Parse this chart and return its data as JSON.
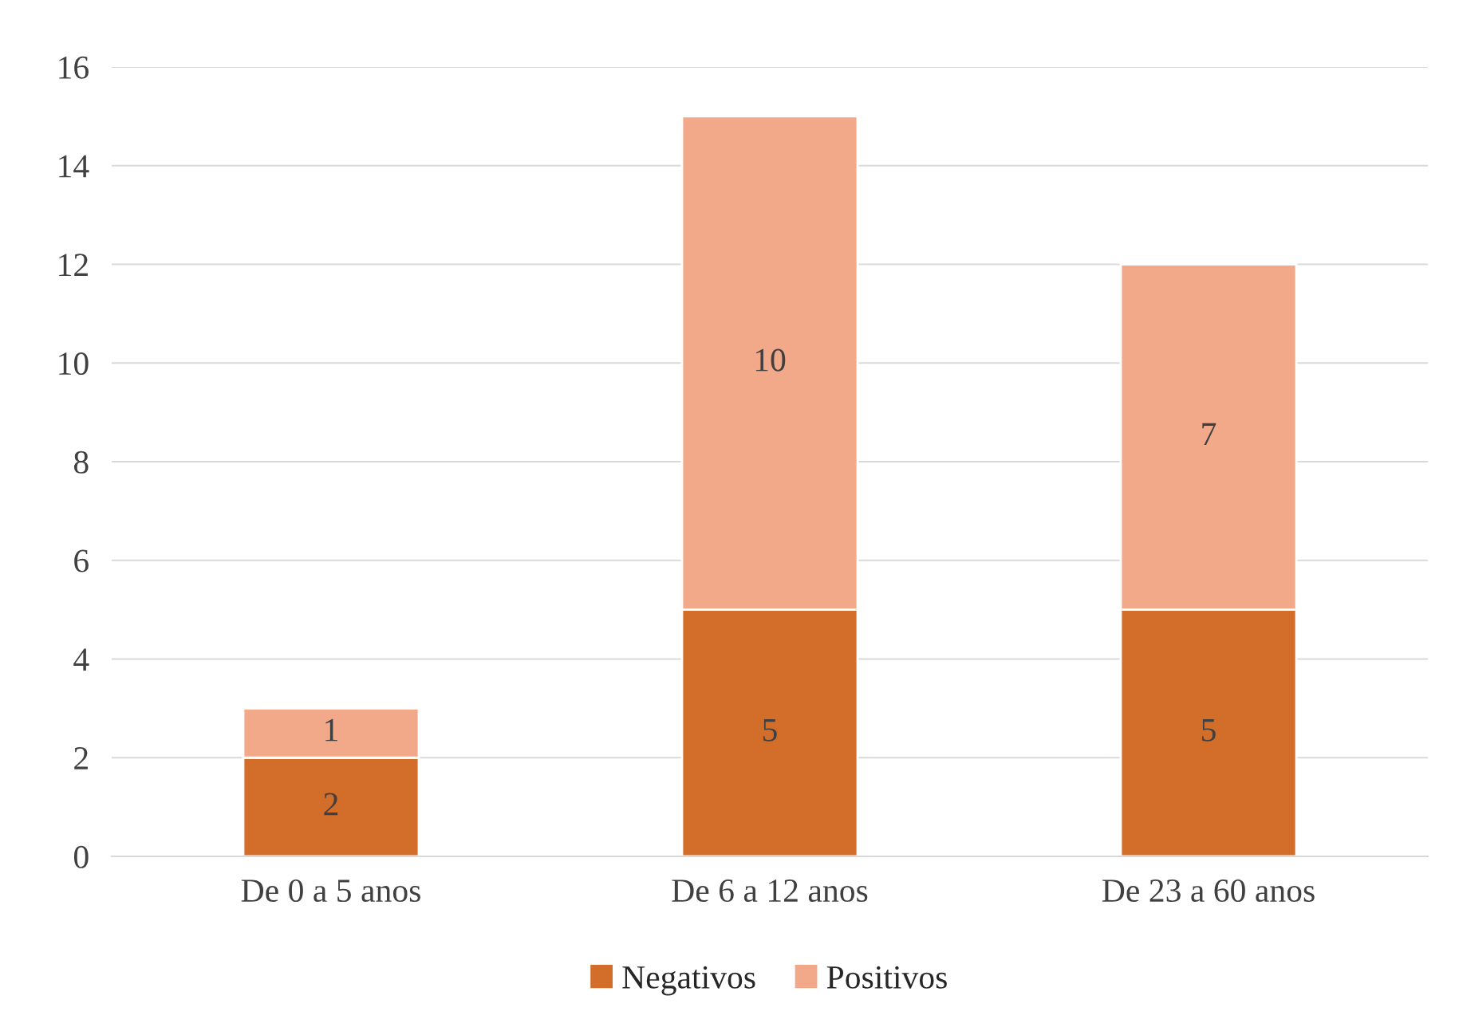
{
  "chart_data": {
    "type": "bar",
    "stacked": true,
    "categories": [
      "De 0 a 5 anos",
      "De 6 a 12 anos",
      "De 23 a 60 anos"
    ],
    "series": [
      {
        "name": "Negativos",
        "color": "#d36d2a",
        "values": [
          2,
          5,
          5
        ]
      },
      {
        "name": "Positivos",
        "color": "#f2a98a",
        "values": [
          1,
          10,
          7
        ]
      }
    ],
    "ylim": [
      0,
      16
    ],
    "yticks": [
      0,
      2,
      4,
      6,
      8,
      10,
      12,
      14,
      16
    ],
    "grid": "y",
    "legend": "bottom",
    "data_labels": true
  }
}
